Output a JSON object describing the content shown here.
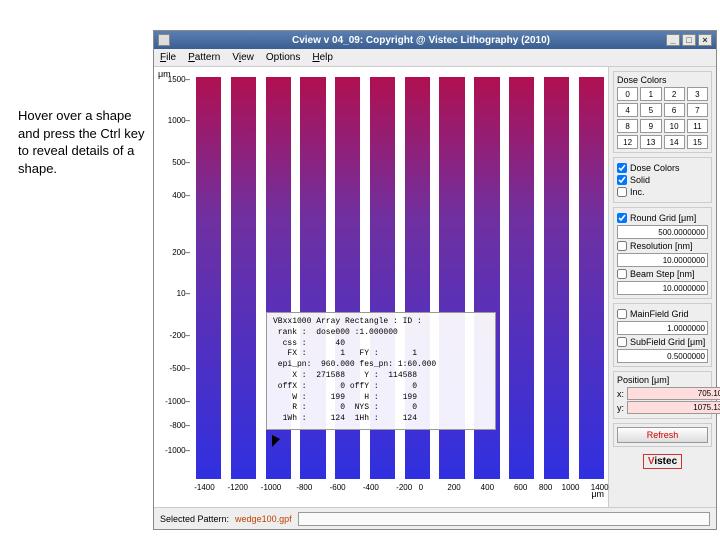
{
  "annotation": "Hover over a shape and press the Ctrl key to reveal details of a shape.",
  "window": {
    "title": "Cview v 04_09: Copyright @ Vistec Lithography (2010)",
    "min": "_",
    "max": "□",
    "close": "×"
  },
  "menu": {
    "file": "File",
    "pattern": "Pattern",
    "view": "View",
    "options": "Options",
    "help": "Help"
  },
  "yaxis": {
    "unit": "μm",
    "ticks": [
      {
        "v": "1500",
        "p": 2
      },
      {
        "v": "1000",
        "p": 12
      },
      {
        "v": "500",
        "p": 22
      },
      {
        "v": "400",
        "p": 30
      },
      {
        "v": "200",
        "p": 44
      },
      {
        "v": "10",
        "p": 54
      },
      {
        "v": "-200",
        "p": 64
      },
      {
        "v": "-500",
        "p": 72
      },
      {
        "v": "-1000",
        "p": 80
      },
      {
        "v": "-800",
        "p": 86
      },
      {
        "v": "-1000",
        "p": 92
      }
    ]
  },
  "xaxis": {
    "unit": "μm",
    "ticks": [
      {
        "v": "-1400",
        "p": 3
      },
      {
        "v": "-1200",
        "p": 11
      },
      {
        "v": "-1000",
        "p": 19
      },
      {
        "v": "-800",
        "p": 27
      },
      {
        "v": "-600",
        "p": 35
      },
      {
        "v": "-400",
        "p": 43
      },
      {
        "v": "-200",
        "p": 51
      },
      {
        "v": "0",
        "p": 55
      },
      {
        "v": "200",
        "p": 63
      },
      {
        "v": "400",
        "p": 71
      },
      {
        "v": "600",
        "p": 79
      },
      {
        "v": "800",
        "p": 85
      },
      {
        "v": "1000",
        "p": 91
      },
      {
        "v": "1400",
        "p": 98
      }
    ]
  },
  "bars": {
    "top": "#b01050",
    "bottom": "#3030e0",
    "count": 12
  },
  "tooltip": "VBxx1000 Array Rectangle : ID :\n rank :  dose000 :1.000000\n  css :      40\n   FX :       1   FY :       1\n epi_pn:  960.000 fes_pn: 1:60.000\n    X :  271588    Y :  114588\n offX :       0 offY :       0\n    W :     199    H :     199\n    R :       0  NYS :       0\n  1Wh :     124  1Hh :     124",
  "panel": {
    "dose_colors_title": "Dose Colors",
    "dose_btns": [
      "0",
      "1",
      "2",
      "3",
      "4",
      "5",
      "6",
      "7",
      "8",
      "9",
      "10",
      "11",
      "12",
      "13",
      "14",
      "15"
    ],
    "chk_dose": "Dose Colors",
    "chk_solid": "Solid",
    "chk_inc": "Inc.",
    "round_grid": "Round Grid [μm]",
    "round_val": "500.0000000",
    "resolution": "Resolution [nm]",
    "res_val": "10.0000000",
    "beam_step": "Beam Step [nm]",
    "beam_val": "10.0000000",
    "mainfield": "MainField Grid",
    "main_val": "1.0000000",
    "subfield": "SubField Grid [μm]",
    "sub_val": "0.5000000",
    "position": "Position [μm]",
    "x_lbl": "x:",
    "x_val": "705.109463",
    "y_lbl": "y:",
    "y_val": "1075.133177",
    "refresh": "Refresh",
    "logo_v": "V",
    "logo_rest": "istec"
  },
  "status": {
    "label": "Selected Pattern:",
    "file": "wedge100.gpf"
  }
}
